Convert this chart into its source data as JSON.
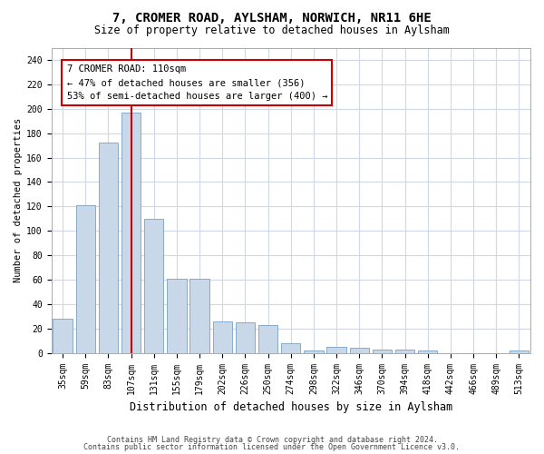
{
  "title": "7, CROMER ROAD, AYLSHAM, NORWICH, NR11 6HE",
  "subtitle": "Size of property relative to detached houses in Aylsham",
  "xlabel": "Distribution of detached houses by size in Aylsham",
  "ylabel": "Number of detached properties",
  "bar_labels": [
    "35sqm",
    "59sqm",
    "83sqm",
    "107sqm",
    "131sqm",
    "155sqm",
    "179sqm",
    "202sqm",
    "226sqm",
    "250sqm",
    "274sqm",
    "298sqm",
    "322sqm",
    "346sqm",
    "370sqm",
    "394sqm",
    "418sqm",
    "442sqm",
    "466sqm",
    "489sqm",
    "513sqm"
  ],
  "bar_values": [
    28,
    121,
    172,
    197,
    110,
    61,
    61,
    26,
    25,
    23,
    8,
    2,
    5,
    4,
    3,
    3,
    2,
    0,
    0,
    0,
    2
  ],
  "bar_color": "#c8d8e8",
  "bar_edge_color": "#7aa0c0",
  "vline_x_index": 3,
  "vline_color": "#cc0000",
  "ylim": [
    0,
    250
  ],
  "yticks": [
    0,
    20,
    40,
    60,
    80,
    100,
    120,
    140,
    160,
    180,
    200,
    220,
    240
  ],
  "annotation_text": "7 CROMER ROAD: 110sqm\n← 47% of detached houses are smaller (356)\n53% of semi-detached houses are larger (400) →",
  "annotation_box_color": "#ffffff",
  "annotation_box_edge": "#cc0000",
  "footer_line1": "Contains HM Land Registry data © Crown copyright and database right 2024.",
  "footer_line2": "Contains public sector information licensed under the Open Government Licence v3.0.",
  "background_color": "#ffffff",
  "grid_color": "#d0d8e8",
  "title_fontsize": 10,
  "subtitle_fontsize": 8.5,
  "ylabel_fontsize": 7.5,
  "xlabel_fontsize": 8.5,
  "tick_fontsize": 7,
  "annotation_fontsize": 7.5,
  "footer_fontsize": 6
}
